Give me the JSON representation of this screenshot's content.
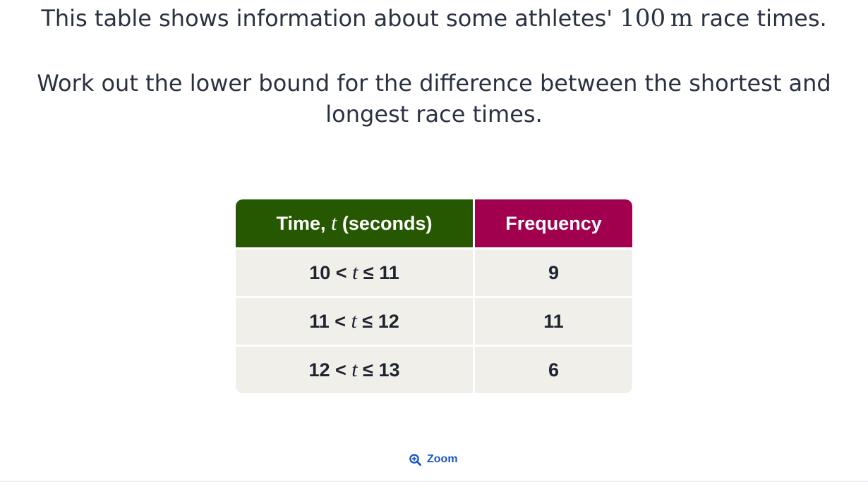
{
  "intro": {
    "before": "This table shows information about some athletes' ",
    "distance_value": "100",
    "distance_unit": "m",
    "after": " race times."
  },
  "question": {
    "line1": "Work out the lower bound for the difference between the shortest and",
    "line2": "longest race times."
  },
  "table": {
    "header_time_before": "Time, ",
    "header_time_var": "t",
    "header_time_after": " (seconds)",
    "header_frequency": "Frequency",
    "rows": [
      {
        "lower": "10",
        "var": "t",
        "upper": "11",
        "frequency": "9"
      },
      {
        "lower": "11",
        "var": "t",
        "upper": "12",
        "frequency": "11"
      },
      {
        "lower": "12",
        "var": "t",
        "upper": "13",
        "frequency": "6"
      }
    ],
    "colors": {
      "time_header_bg": "#255800",
      "frequency_header_bg": "#a0004e",
      "cell_bg": "#f1efea"
    }
  },
  "zoom": {
    "label": "Zoom",
    "icon": "zoom-in-icon",
    "color": "#1a56c8"
  }
}
